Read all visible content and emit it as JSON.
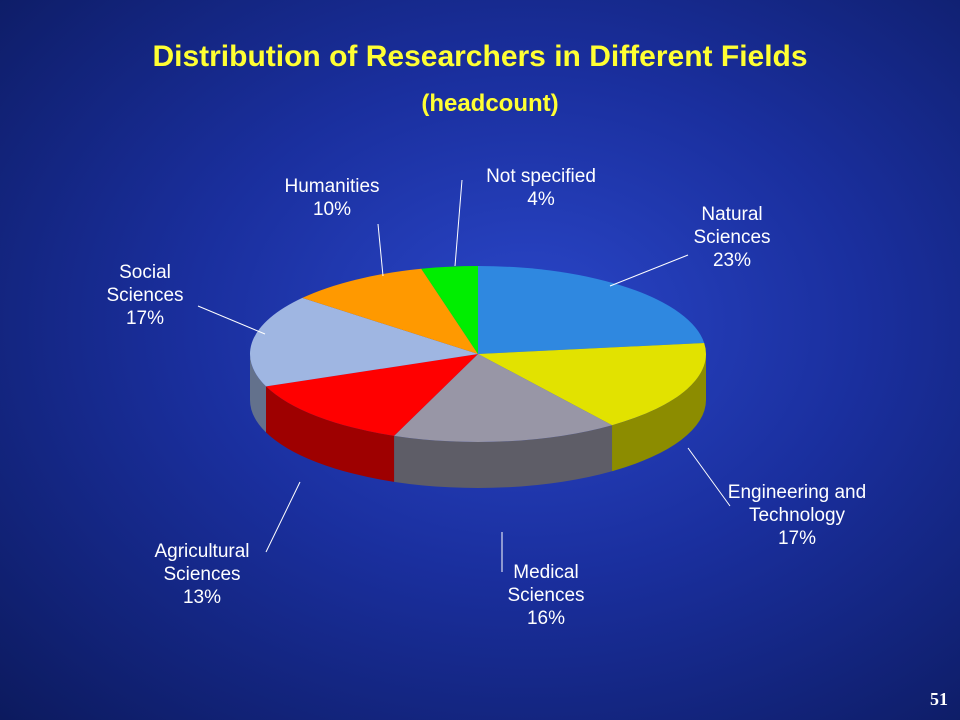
{
  "chart_data": {
    "type": "pie",
    "title": "Distribution of Researchers in Different Fields",
    "subtitle": "(headcount)",
    "categories": [
      "Natural Sciences",
      "Engineering and Technology",
      "Medical Sciences",
      "Agricultural Sciences",
      "Social Sciences",
      "Humanities",
      "Not specified"
    ],
    "values": [
      23,
      17,
      16,
      13,
      17,
      10,
      4
    ],
    "value_labels": [
      "23%",
      "17%",
      "16%",
      "13%",
      "17%",
      "10%",
      "4%"
    ],
    "colors": [
      "#2f88e0",
      "#e2e200",
      "#9896a6",
      "#ff0000",
      "#9fb6e2",
      "#ff9900",
      "#00ee00"
    ]
  },
  "page_number": "51"
}
